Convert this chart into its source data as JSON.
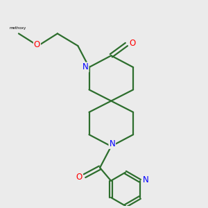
{
  "bg_color": "#ebebeb",
  "bond_color": "#2d6e2d",
  "N_color": "#0000ff",
  "O_color": "#ff0000",
  "line_width": 1.6,
  "figsize": [
    3.0,
    3.0
  ],
  "dpi": 100,
  "xlim": [
    0,
    10
  ],
  "ylim": [
    0,
    10
  ]
}
